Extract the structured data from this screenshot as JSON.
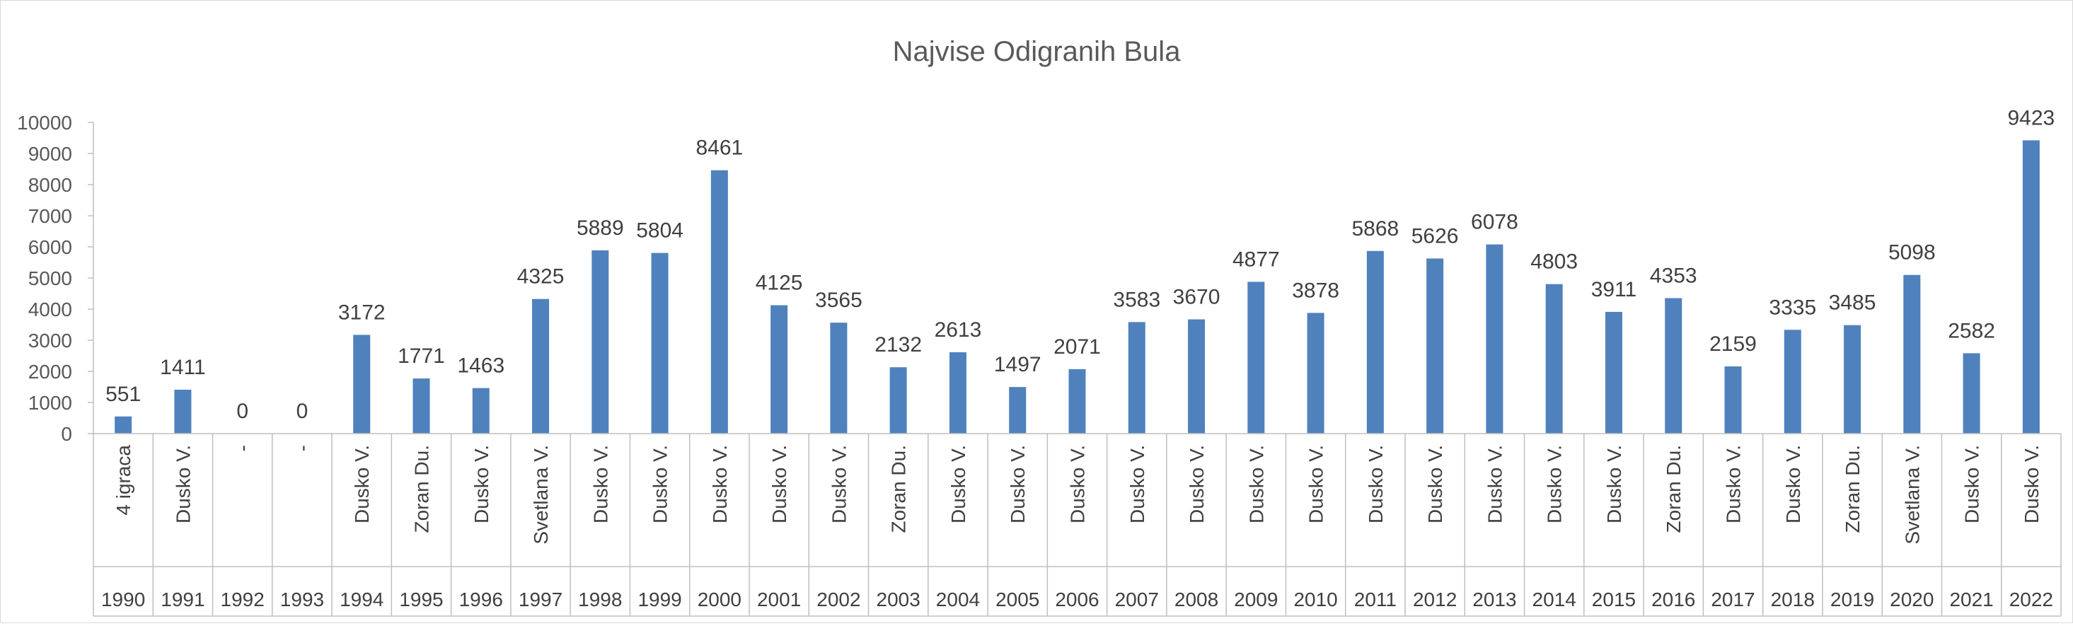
{
  "chart_data": {
    "type": "bar",
    "title": "Najvise Odigranih Bula",
    "xlabel": "",
    "ylabel": "",
    "ylim": [
      0,
      10000
    ],
    "yticks": [
      0,
      1000,
      2000,
      3000,
      4000,
      5000,
      6000,
      7000,
      8000,
      9000,
      10000
    ],
    "grid": false,
    "legend": "none",
    "bar_color": "#4f81bd",
    "categories": [
      {
        "year": "1990",
        "player": "4 igraca"
      },
      {
        "year": "1991",
        "player": "Dusko V."
      },
      {
        "year": "1992",
        "player": "-"
      },
      {
        "year": "1993",
        "player": "-"
      },
      {
        "year": "1994",
        "player": "Dusko V."
      },
      {
        "year": "1995",
        "player": "Zoran Du."
      },
      {
        "year": "1996",
        "player": "Dusko V."
      },
      {
        "year": "1997",
        "player": "Svetlana V."
      },
      {
        "year": "1998",
        "player": "Dusko V."
      },
      {
        "year": "1999",
        "player": "Dusko V."
      },
      {
        "year": "2000",
        "player": "Dusko V."
      },
      {
        "year": "2001",
        "player": "Dusko V."
      },
      {
        "year": "2002",
        "player": "Dusko V."
      },
      {
        "year": "2003",
        "player": "Zoran Du."
      },
      {
        "year": "2004",
        "player": "Dusko V."
      },
      {
        "year": "2005",
        "player": "Dusko V."
      },
      {
        "year": "2006",
        "player": "Dusko V."
      },
      {
        "year": "2007",
        "player": "Dusko V."
      },
      {
        "year": "2008",
        "player": "Dusko V."
      },
      {
        "year": "2009",
        "player": "Dusko V."
      },
      {
        "year": "2010",
        "player": "Dusko V."
      },
      {
        "year": "2011",
        "player": "Dusko V."
      },
      {
        "year": "2012",
        "player": "Dusko V."
      },
      {
        "year": "2013",
        "player": "Dusko V."
      },
      {
        "year": "2014",
        "player": "Dusko V."
      },
      {
        "year": "2015",
        "player": "Dusko V."
      },
      {
        "year": "2016",
        "player": "Zoran Du."
      },
      {
        "year": "2017",
        "player": "Dusko V."
      },
      {
        "year": "2018",
        "player": "Dusko V."
      },
      {
        "year": "2019",
        "player": "Zoran Du."
      },
      {
        "year": "2020",
        "player": "Svetlana V."
      },
      {
        "year": "2021",
        "player": "Dusko V."
      },
      {
        "year": "2022",
        "player": "Dusko V."
      }
    ],
    "values": [
      551,
      1411,
      0,
      0,
      3172,
      1771,
      1463,
      4325,
      5889,
      5804,
      8461,
      4125,
      3565,
      2132,
      2613,
      1497,
      2071,
      3583,
      3670,
      4877,
      3878,
      5868,
      5626,
      6078,
      4803,
      3911,
      4353,
      2159,
      3335,
      3485,
      5098,
      2582,
      9423
    ]
  }
}
